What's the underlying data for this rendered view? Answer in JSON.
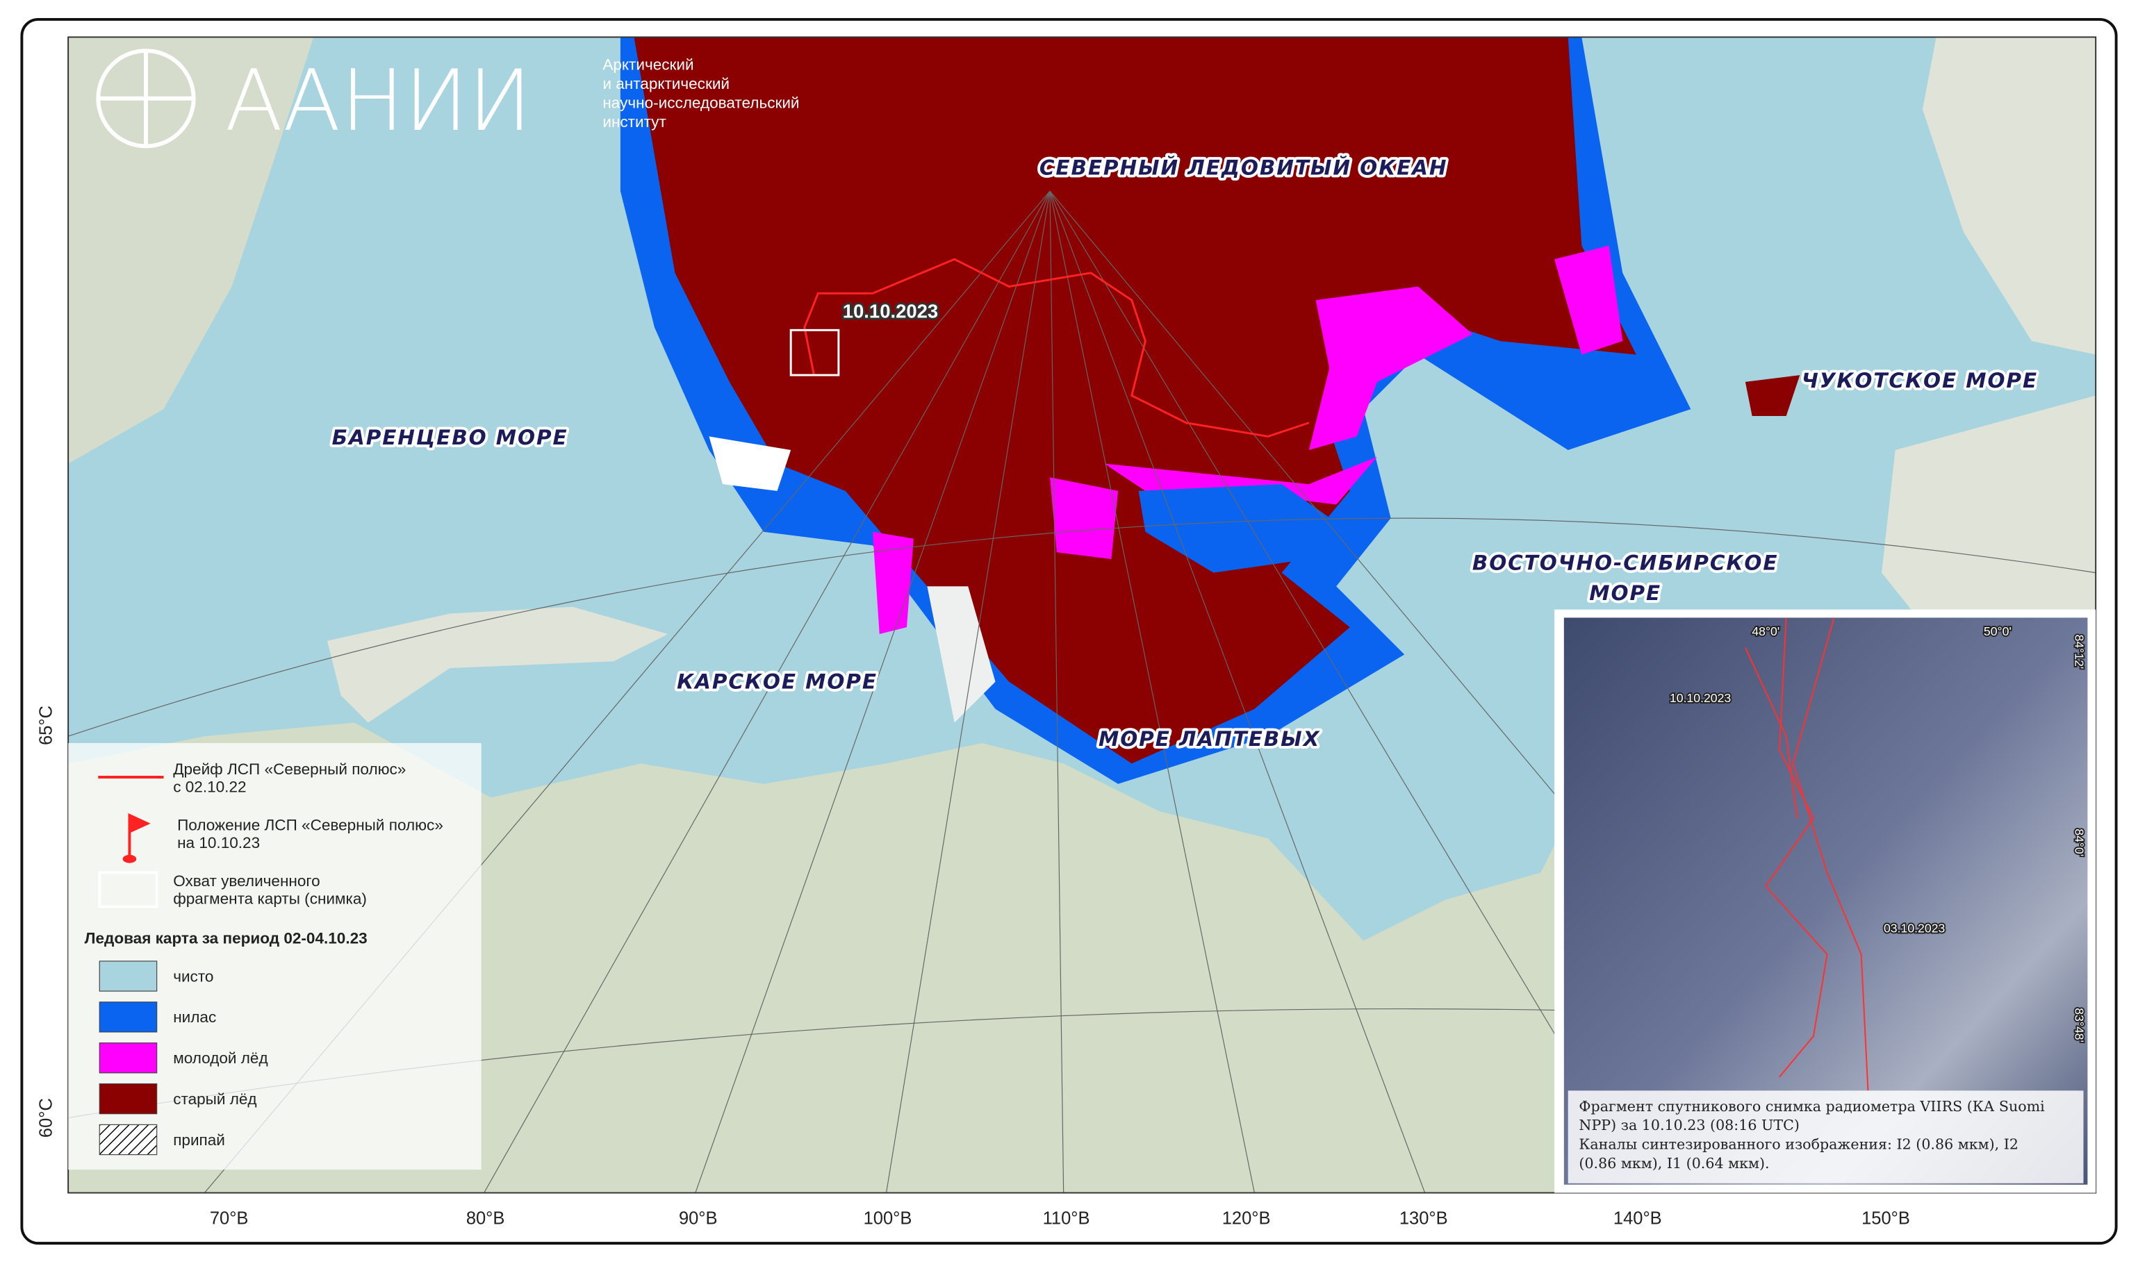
{
  "header": {
    "logo": "ААНИИ",
    "institute": [
      "Арктический",
      "и антарктический",
      "научно-исследовательский",
      "институт"
    ]
  },
  "map": {
    "sea_labels": [
      {
        "lines": [
          "СЕВЕРНЫЙ ЛЕДОВИТЫЙ ОКЕАН"
        ]
      },
      {
        "lines": [
          "БАРЕНЦЕВО МОРЕ"
        ]
      },
      {
        "lines": [
          "КАРСКОЕ МОРЕ"
        ]
      },
      {
        "lines": [
          "МОРЕ ЛАПТЕВЫХ"
        ]
      },
      {
        "lines": [
          "ВОСТОЧНО-СИБИРСКОЕ",
          "МОРЕ"
        ]
      },
      {
        "lines": [
          "ЧУКОТСКОЕ МОРЕ"
        ]
      }
    ],
    "position_date": "10.10.2023",
    "lon_labels": [
      "70°В",
      "80°В",
      "90°В",
      "100°В",
      "110°В",
      "120°В",
      "130°В",
      "140°В",
      "150°В"
    ],
    "lat_labels": [
      "65°С",
      "60°С"
    ]
  },
  "legend": {
    "items": [
      {
        "lines": [
          "Дрейф ЛСП «Северный полюс»",
          "с 02.10.22"
        ]
      },
      {
        "lines": [
          "Положение ЛСП «Северный полюс»",
          "на 10.10.23"
        ]
      },
      {
        "lines": [
          "Охват увеличенного",
          "фрагмента карты (снимка)"
        ]
      }
    ],
    "title": "Ледовая карта за период 02-04.10.23",
    "classes": [
      {
        "label": "чисто",
        "color": "#a8d4df"
      },
      {
        "label": "нилас",
        "color": "#0a64f0"
      },
      {
        "label": "молодой лёд",
        "color": "#ff00ff"
      },
      {
        "label": "старый лёд",
        "color": "#8b0000"
      },
      {
        "label": "припай",
        "color": "hatch"
      }
    ]
  },
  "inset": {
    "coords": [
      "48°0'",
      "50°0'",
      "84°12'",
      "84°0'",
      "83°48'"
    ],
    "dates": [
      "10.10.2023",
      "03.10.2023"
    ],
    "caption": [
      "Фрагмент спутникового снимка радиометра VIIRS (КА Suomi",
      "NPP) за 10.10.23 (08:16 UTC)",
      "Каналы синтезированного изображения: I2 (0.86 мкм), I2",
      "(0.86 мкм), I1 (0.64 мкм)."
    ]
  }
}
